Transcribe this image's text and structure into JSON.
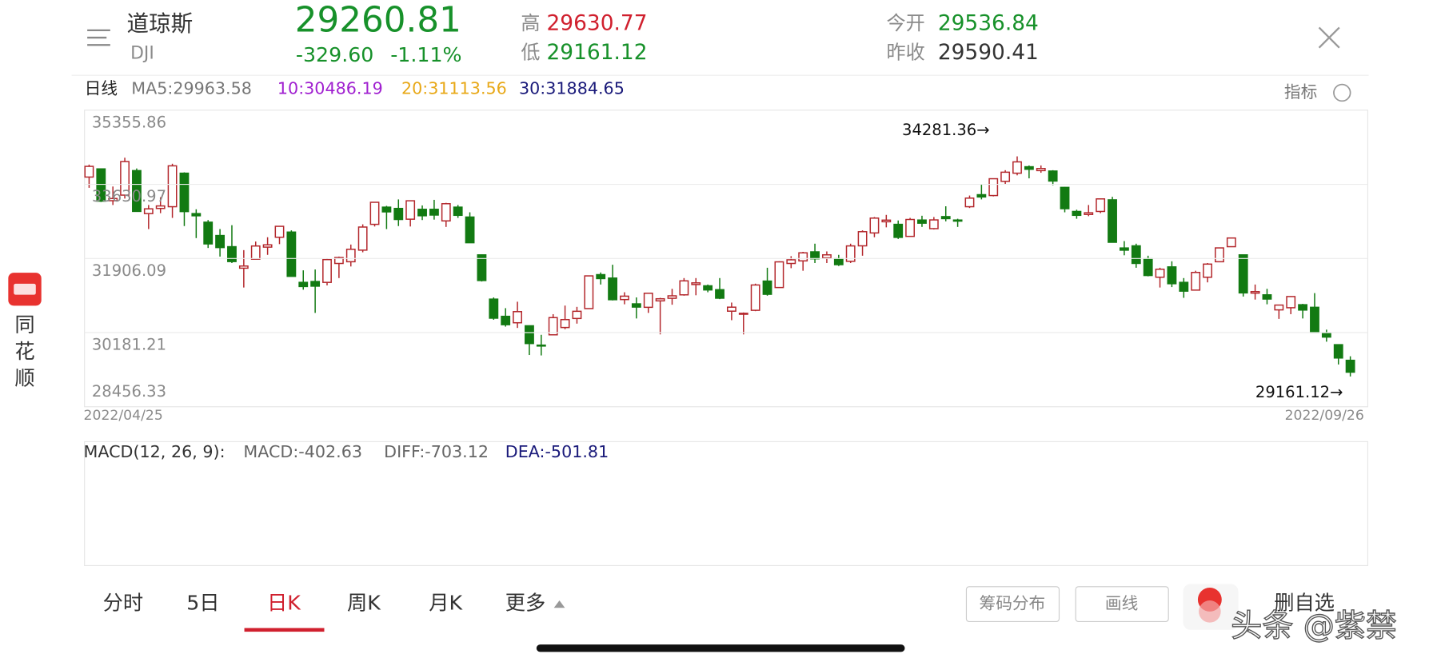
{
  "header": {
    "name": "道琼斯",
    "code": "DJI",
    "price": "29260.81",
    "change": "-329.60",
    "change_pct": "-1.11%",
    "high_label": "高",
    "high": "29630.77",
    "low_label": "低",
    "low": "29161.12",
    "open_label": "今开",
    "open": "29536.84",
    "prev_close_label": "昨收",
    "prev_close": "29590.41"
  },
  "legend": {
    "period": "日线",
    "ma5": "MA5:29963.58",
    "ma10": "10:30486.19",
    "ma20": "20:31113.56",
    "ma30": "30:31884.65",
    "indicator": "指标"
  },
  "chart_data": {
    "type": "candlestick",
    "ylim": [
      28456.33,
      35355.86
    ],
    "yticks": [
      35355.86,
      33630.97,
      31906.09,
      30181.21,
      28456.33
    ],
    "grid": true,
    "date_range": [
      "2022/04/25",
      "2022/09/26"
    ],
    "colors": {
      "up": "#b3262b",
      "down": "#127a12"
    },
    "annotations": [
      "34281.36→",
      "29161.12→"
    ],
    "ohlc": [
      [
        33800,
        34090,
        33550,
        34049
      ],
      [
        33990,
        34000,
        33220,
        33240
      ],
      [
        33250,
        33580,
        33150,
        33301
      ],
      [
        33380,
        34250,
        33300,
        34160
      ],
      [
        33950,
        34000,
        32990,
        33001
      ],
      [
        32950,
        33150,
        32590,
        33061
      ],
      [
        33070,
        33330,
        32960,
        33128
      ],
      [
        33110,
        34110,
        32850,
        34061
      ],
      [
        33890,
        33910,
        32660,
        32997
      ],
      [
        32950,
        33050,
        32380,
        32899
      ],
      [
        32750,
        32800,
        32150,
        32245
      ],
      [
        32440,
        32590,
        31950,
        32160
      ],
      [
        32180,
        32680,
        31800,
        31834
      ],
      [
        31680,
        32100,
        31230,
        31730
      ],
      [
        31890,
        32300,
        31890,
        32196
      ],
      [
        32170,
        32400,
        31990,
        32223
      ],
      [
        32400,
        32660,
        32240,
        32654
      ],
      [
        32520,
        32560,
        31490,
        31490
      ],
      [
        31350,
        31630,
        31180,
        31253
      ],
      [
        31370,
        31650,
        30640,
        31262
      ],
      [
        31350,
        31900,
        31280,
        31880
      ],
      [
        31790,
        31950,
        31450,
        31928
      ],
      [
        31830,
        32230,
        31720,
        32120
      ],
      [
        32100,
        32700,
        32050,
        32637
      ],
      [
        32700,
        33220,
        32650,
        33213
      ],
      [
        33100,
        33130,
        32590,
        32990
      ],
      [
        33070,
        33280,
        32660,
        32813
      ],
      [
        32820,
        33260,
        32650,
        33248
      ],
      [
        33050,
        33140,
        32800,
        32900
      ],
      [
        33050,
        33270,
        32810,
        32916
      ],
      [
        32780,
        33200,
        32640,
        33180
      ],
      [
        33100,
        33150,
        32850,
        32910
      ],
      [
        32870,
        32980,
        32270,
        32272
      ],
      [
        31990,
        32000,
        31370,
        31393
      ],
      [
        30960,
        31000,
        30480,
        30517
      ],
      [
        30560,
        30750,
        30320,
        30365
      ],
      [
        30410,
        30900,
        30290,
        30669
      ],
      [
        30340,
        30350,
        29660,
        29927
      ],
      [
        29890,
        30130,
        29650,
        29889
      ],
      [
        30130,
        30610,
        30130,
        30530
      ],
      [
        30300,
        30810,
        30260,
        30484
      ],
      [
        30510,
        30780,
        30390,
        30677
      ],
      [
        30740,
        31510,
        30740,
        31501
      ],
      [
        31530,
        31580,
        31300,
        31438
      ],
      [
        31450,
        31760,
        30930,
        30947
      ],
      [
        30950,
        31120,
        30840,
        31029
      ],
      [
        30850,
        31000,
        30510,
        30775
      ],
      [
        30770,
        31100,
        30640,
        31097
      ],
      [
        30920,
        30990,
        30140,
        30968
      ],
      [
        30980,
        31200,
        30830,
        31037
      ],
      [
        31060,
        31450,
        31040,
        31385
      ],
      [
        31300,
        31450,
        31050,
        31338
      ],
      [
        31270,
        31300,
        31120,
        31174
      ],
      [
        31180,
        31450,
        30960,
        30982
      ],
      [
        30680,
        30880,
        30470,
        30773
      ],
      [
        30610,
        30650,
        30140,
        30630
      ],
      [
        30700,
        31320,
        30680,
        31289
      ],
      [
        31380,
        31690,
        31040,
        31073
      ],
      [
        31230,
        31840,
        31230,
        31827
      ],
      [
        31790,
        31960,
        31680,
        31875
      ],
      [
        31850,
        32060,
        31620,
        32037
      ],
      [
        32060,
        32250,
        31800,
        31899
      ],
      [
        31920,
        32070,
        31800,
        31990
      ],
      [
        31900,
        31990,
        31730,
        31762
      ],
      [
        31840,
        32250,
        31800,
        32198
      ],
      [
        32200,
        32560,
        31970,
        32529
      ],
      [
        32500,
        32870,
        32400,
        32845
      ],
      [
        32760,
        32920,
        32630,
        32798
      ],
      [
        32700,
        32790,
        32360,
        32397
      ],
      [
        32420,
        32850,
        32420,
        32813
      ],
      [
        32800,
        32900,
        32640,
        32727
      ],
      [
        32600,
        32870,
        32580,
        32803
      ],
      [
        32880,
        33120,
        32770,
        32833
      ],
      [
        32800,
        32830,
        32640,
        32775
      ],
      [
        33110,
        33370,
        33080,
        33310
      ],
      [
        33390,
        33640,
        33280,
        33337
      ],
      [
        33370,
        33770,
        33350,
        33761
      ],
      [
        33700,
        33960,
        33630,
        33913
      ],
      [
        33890,
        34281.36,
        33840,
        34153
      ],
      [
        34040,
        34070,
        33770,
        33981
      ],
      [
        33950,
        34070,
        33900,
        33999
      ],
      [
        33940,
        33960,
        33610,
        33707
      ],
      [
        33560,
        33570,
        32980,
        33064
      ],
      [
        33000,
        33040,
        32830,
        32910
      ],
      [
        32930,
        33150,
        32890,
        32969
      ],
      [
        33000,
        33300,
        32960,
        33292
      ],
      [
        33270,
        33340,
        32280,
        32283
      ],
      [
        32150,
        32310,
        31980,
        32099
      ],
      [
        32200,
        32250,
        31690,
        31791
      ],
      [
        31900,
        31970,
        31490,
        31510
      ],
      [
        31470,
        31690,
        31230,
        31656
      ],
      [
        31710,
        31840,
        31240,
        31319
      ],
      [
        31350,
        31450,
        30990,
        31146
      ],
      [
        31170,
        31620,
        31160,
        31581
      ],
      [
        31470,
        31800,
        31350,
        31775
      ],
      [
        31830,
        32160,
        31830,
        32152
      ],
      [
        32180,
        32380,
        32180,
        32382
      ],
      [
        31990,
        31990,
        31020,
        31105
      ],
      [
        31100,
        31300,
        30950,
        31135
      ],
      [
        31060,
        31200,
        30840,
        30962
      ],
      [
        30710,
        30830,
        30500,
        30822
      ],
      [
        30760,
        31030,
        30610,
        31020
      ],
      [
        30830,
        30850,
        30510,
        30706
      ],
      [
        30770,
        31100,
        30180,
        30184
      ],
      [
        30160,
        30250,
        29970,
        30077
      ],
      [
        29900,
        29900,
        29440,
        29590.41
      ],
      [
        29536.84,
        29630.77,
        29161.12,
        29260.81
      ]
    ]
  },
  "macd": {
    "title": "MACD(12, 26, 9):",
    "macd": "MACD:-402.63",
    "diff": "DIFF:-703.12",
    "dea": "DEA:-501.81"
  },
  "tabs": [
    "分时",
    "5日",
    "日K",
    "周K",
    "月K",
    "更多"
  ],
  "buttons": [
    "筹码分布",
    "画线",
    "删自选"
  ],
  "sidebar": [
    "同",
    "花",
    "顺"
  ],
  "watermark": "头条 @紫禁"
}
